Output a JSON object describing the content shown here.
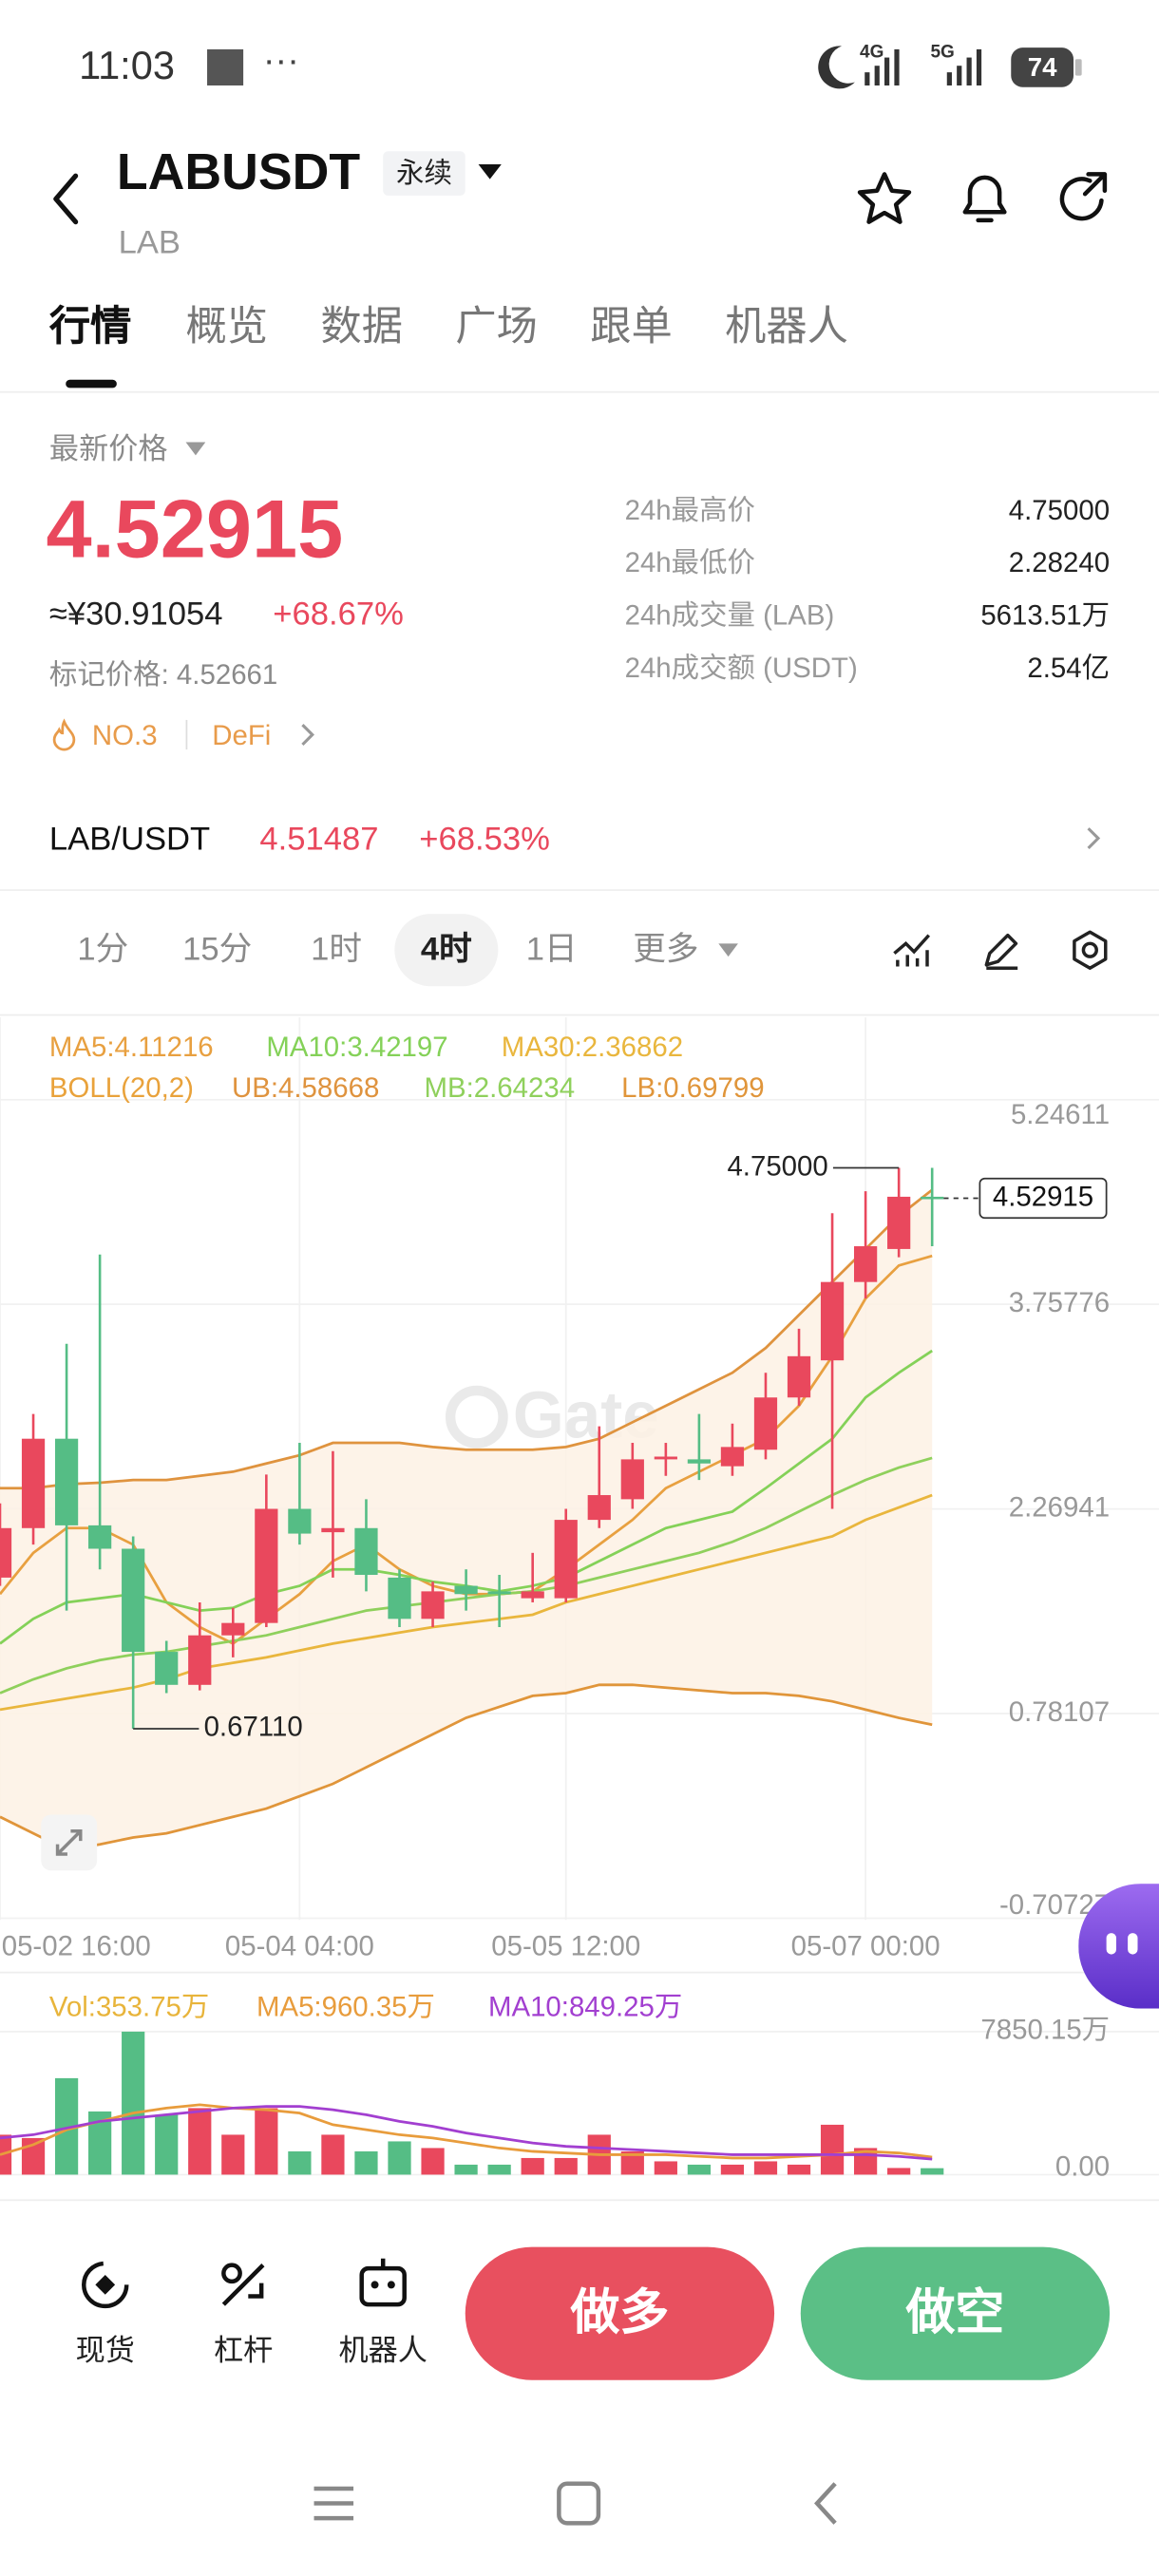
{
  "status_bar": {
    "time": "11:03",
    "net_a": "4G",
    "net_b": "5G",
    "battery": "74"
  },
  "header": {
    "symbol": "LABUSDT",
    "contract_type": "永续",
    "base_asset": "LAB"
  },
  "tabs": [
    "行情",
    "概览",
    "数据",
    "广场",
    "跟单",
    "机器人"
  ],
  "price_panel": {
    "label": "最新价格",
    "last_price": "4.52915",
    "cny_price": "≈¥30.91054",
    "change": "+68.67%",
    "mark_price": "标记价格: 4.52661",
    "rank": "NO.3",
    "sector": "DeFi"
  },
  "stats": [
    [
      "24h最高价",
      "4.75000"
    ],
    [
      "24h最低价",
      "2.28240"
    ],
    [
      "24h成交量 (LAB)",
      "5613.51万"
    ],
    [
      "24h成交额 (USDT)",
      "2.54亿"
    ]
  ],
  "spot": {
    "pair": "LAB/USDT",
    "price": "4.51487",
    "change": "+68.53%"
  },
  "intervals": [
    "1分",
    "15分",
    "1时",
    "4时",
    "1日",
    "更多"
  ],
  "chart_data": [
    {
      "type": "candlestick",
      "categories": [
        "05-02 16:00",
        null,
        null,
        null,
        null,
        null,
        null,
        null,
        null,
        "05-04 04:00",
        null,
        null,
        null,
        null,
        null,
        null,
        null,
        "05-05 12:00",
        null,
        null,
        null,
        null,
        null,
        null,
        null,
        null,
        "05-07 00:00",
        null,
        null
      ],
      "open": [
        1.77,
        2.13,
        2.78,
        2.15,
        1.98,
        1.23,
        0.99,
        1.35,
        1.44,
        2.27,
        2.1,
        2.13,
        1.77,
        1.47,
        1.71,
        1.67,
        1.62,
        1.62,
        2.19,
        2.34,
        2.63,
        2.63,
        2.58,
        2.7,
        3.08,
        3.35,
        3.92,
        4.16,
        4.54
      ],
      "high": [
        2.31,
        2.96,
        3.47,
        4.12,
        2.07,
        1.31,
        1.59,
        1.55,
        2.52,
        2.75,
        2.69,
        2.34,
        1.83,
        1.74,
        1.83,
        1.79,
        1.95,
        2.27,
        2.87,
        2.75,
        2.75,
        2.96,
        2.89,
        3.26,
        3.58,
        4.42,
        4.58,
        4.75,
        4.75
      ],
      "low": [
        1.71,
        2.01,
        1.53,
        1.83,
        0.6711,
        0.93,
        0.95,
        1.19,
        1.41,
        2.01,
        1.77,
        1.67,
        1.41,
        1.41,
        1.53,
        1.41,
        1.59,
        1.59,
        2.13,
        2.27,
        2.51,
        2.48,
        2.51,
        2.63,
        3.02,
        2.27,
        3.8,
        4.1,
        4.18
      ],
      "close": [
        2.13,
        2.78,
        2.15,
        1.98,
        1.23,
        0.99,
        1.35,
        1.44,
        2.27,
        2.09,
        2.13,
        1.79,
        1.47,
        1.67,
        1.65,
        1.65,
        1.67,
        2.19,
        2.37,
        2.63,
        2.65,
        2.6,
        2.72,
        3.08,
        3.38,
        3.92,
        4.18,
        4.54,
        4.52915
      ],
      "up_color": "#e9485d",
      "down_color": "#55bd85",
      "ylim": [
        -0.70727,
        5.24611
      ],
      "yticks": [
        5.24611,
        3.75776,
        2.26941,
        0.78107,
        -0.70727
      ],
      "grid": true,
      "band_title": "BOLL(20,2)",
      "band_color": "#e9a23b",
      "band_fill": "#fdf1e4",
      "overlays": [
        {
          "name": "MA5:4.11216",
          "color": "#e8a040",
          "values": [
            1.65,
            1.95,
            2.13,
            2.13,
            2.01,
            1.59,
            1.41,
            1.29,
            1.47,
            1.65,
            1.89,
            2.01,
            1.83,
            1.71,
            1.65,
            1.65,
            1.67,
            1.83,
            2.01,
            2.19,
            2.42,
            2.54,
            2.66,
            2.78,
            3.02,
            3.38,
            3.8,
            4.04,
            4.11
          ]
        },
        {
          "name": "MA10:3.42197",
          "color": "#84d158",
          "values": [
            1.29,
            1.47,
            1.59,
            1.62,
            1.65,
            1.59,
            1.53,
            1.55,
            1.65,
            1.71,
            1.83,
            1.83,
            1.79,
            1.74,
            1.71,
            1.67,
            1.71,
            1.77,
            1.89,
            2.01,
            2.13,
            2.19,
            2.25,
            2.42,
            2.6,
            2.78,
            3.08,
            3.26,
            3.42
          ]
        },
        {
          "name": "MA30:2.36862",
          "color": "#e9b63d",
          "values": [
            0.81,
            0.85,
            0.89,
            0.93,
            0.97,
            1.03,
            1.11,
            1.15,
            1.19,
            1.24,
            1.29,
            1.33,
            1.37,
            1.41,
            1.44,
            1.47,
            1.5,
            1.59,
            1.65,
            1.71,
            1.77,
            1.83,
            1.89,
            1.95,
            2.01,
            2.07,
            2.19,
            2.28,
            2.37
          ]
        },
        {
          "name": "UB:4.58668",
          "color": "#df933e",
          "values": [
            2.42,
            2.42,
            2.45,
            2.46,
            2.48,
            2.48,
            2.51,
            2.54,
            2.6,
            2.66,
            2.75,
            2.75,
            2.75,
            2.72,
            2.7,
            2.7,
            2.7,
            2.72,
            2.78,
            2.9,
            3.02,
            3.14,
            3.26,
            3.44,
            3.68,
            3.92,
            4.16,
            4.4,
            4.59
          ]
        },
        {
          "name": "MB:2.64234",
          "color": "#8fd05c",
          "values": [
            0.93,
            1.03,
            1.11,
            1.17,
            1.21,
            1.23,
            1.27,
            1.31,
            1.35,
            1.41,
            1.47,
            1.53,
            1.56,
            1.59,
            1.62,
            1.65,
            1.67,
            1.71,
            1.77,
            1.83,
            1.89,
            1.95,
            2.03,
            2.13,
            2.25,
            2.37,
            2.48,
            2.57,
            2.64
          ]
        },
        {
          "name": "LB:0.69799",
          "color": "#e0953a",
          "values": [
            0.03,
            -0.09,
            -0.21,
            -0.17,
            -0.12,
            -0.09,
            -0.03,
            0.03,
            0.09,
            0.18,
            0.27,
            0.39,
            0.51,
            0.63,
            0.75,
            0.83,
            0.91,
            0.93,
            0.99,
            0.99,
            0.97,
            0.95,
            0.93,
            0.93,
            0.91,
            0.87,
            0.81,
            0.75,
            0.7
          ]
        }
      ],
      "high_label": "4.75000",
      "low_label": "0.67110",
      "last_label": "4.52915",
      "watermark": "Gate"
    },
    {
      "type": "bar",
      "ylim": [
        0,
        7850.15
      ],
      "yticks": [
        {
          "value": 7850.15,
          "label": "7850.15万"
        },
        {
          "value": 0,
          "label": "0.00"
        }
      ],
      "series": [
        {
          "name": "Vol:353.75万",
          "color": "#e8b43a",
          "values": [
            2191,
            2009,
            5295,
            3469,
            7850.15,
            3287,
            3652,
            2191,
            3652,
            1278,
            2191,
            1278,
            1826,
            1461,
            548,
            548,
            913,
            913,
            2191,
            1278,
            730,
            548,
            548,
            730,
            548,
            2739,
            1461,
            365,
            353.75
          ]
        },
        {
          "name": "MA5:960.35万",
          "type": "line",
          "color": "#e89c3c",
          "values": [
            1096,
            1643,
            2465,
            2922,
            3378,
            3652,
            3835,
            3652,
            3561,
            3378,
            2739,
            2465,
            2191,
            2009,
            1735,
            1461,
            1278,
            1187,
            1096,
            1096,
            1096,
            1004,
            913,
            913,
            1004,
            1096,
            1278,
            1187,
            960.35
          ]
        },
        {
          "name": "MA10:849.25万",
          "type": "line",
          "color": "#a23fd0",
          "values": [
            2009,
            2191,
            2556,
            2922,
            3104,
            3287,
            3469,
            3652,
            3743,
            3743,
            3561,
            3287,
            2922,
            2648,
            2283,
            2009,
            1735,
            1552,
            1461,
            1370,
            1278,
            1187,
            1096,
            1096,
            1096,
            1096,
            1096,
            1004,
            849.25
          ]
        }
      ]
    }
  ],
  "actions": [
    "现货",
    "杠杆",
    "机器人"
  ],
  "trade_buttons": {
    "long": "做多",
    "short": "做空"
  }
}
